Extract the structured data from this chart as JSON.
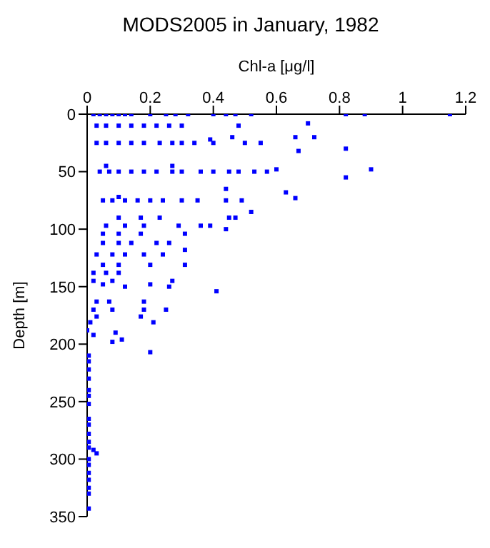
{
  "chart_data": {
    "type": "scatter",
    "title": "MODS2005 in January, 1982",
    "xlabel": "Chl-a [μg/l]",
    "ylabel": "Depth [m]",
    "xlim": [
      0,
      1.2
    ],
    "xticks": [
      0,
      0.2,
      0.4,
      0.6,
      0.8,
      1,
      1.2
    ],
    "ylim": [
      350,
      0
    ],
    "yticks": [
      0,
      50,
      100,
      150,
      200,
      250,
      300,
      350
    ],
    "grid": false,
    "legend": false,
    "marker": "square",
    "series": [
      {
        "color": "#0000ff",
        "x": [
          0.02,
          0.04,
          0.06,
          0.08,
          0.1,
          0.12,
          0.14,
          0.2,
          0.25,
          0.28,
          0.32,
          0.4,
          0.44,
          0.47,
          0.52,
          0.82,
          0.88,
          1.15,
          0.03,
          0.06,
          0.1,
          0.14,
          0.18,
          0.22,
          0.26,
          0.3,
          0.48,
          0.7,
          0.03,
          0.06,
          0.1,
          0.14,
          0.18,
          0.23,
          0.27,
          0.3,
          0.34,
          0.4,
          0.5,
          0.55,
          0.39,
          0.46,
          0.66,
          0.72,
          0.67,
          0.82,
          0.04,
          0.07,
          0.1,
          0.14,
          0.18,
          0.22,
          0.27,
          0.3,
          0.36,
          0.4,
          0.45,
          0.48,
          0.53,
          0.57,
          0.06,
          0.27,
          0.6,
          0.82,
          0.9,
          0.05,
          0.08,
          0.12,
          0.16,
          0.2,
          0.24,
          0.3,
          0.35,
          0.44,
          0.49,
          0.1,
          0.44,
          0.63,
          0.66,
          0.52,
          0.1,
          0.17,
          0.23,
          0.45,
          0.47,
          0.06,
          0.12,
          0.18,
          0.29,
          0.36,
          0.39,
          0.44,
          0.05,
          0.1,
          0.17,
          0.31,
          0.05,
          0.1,
          0.14,
          0.22,
          0.26,
          0.03,
          0.08,
          0.12,
          0.18,
          0.24,
          0.31,
          0.05,
          0.1,
          0.2,
          0.31,
          0.02,
          0.06,
          0.1,
          0.02,
          0.05,
          0.08,
          0.12,
          0.2,
          0.26,
          0.27,
          0.41,
          0.03,
          0.07,
          0.18,
          0.02,
          0.08,
          0.18,
          0.25,
          0.03,
          0.17,
          0.01,
          0.21,
          0.0,
          0.02,
          0.09,
          0.11,
          0.08,
          0.2,
          0.005,
          0.005,
          0.005,
          0.005,
          0.005,
          0.005,
          0.005,
          0.005,
          0.005,
          0.005,
          0.005,
          0.005,
          0.005,
          0.005,
          0.005,
          0.005,
          0.005,
          0.005,
          0.005,
          0.03,
          0.02
        ],
        "values": [
          0,
          0,
          0,
          0,
          0,
          0,
          0,
          0,
          0,
          0,
          0,
          0,
          0,
          0,
          0,
          0,
          0,
          0,
          10,
          10,
          10,
          10,
          10,
          10,
          10,
          10,
          10,
          8,
          25,
          25,
          25,
          25,
          25,
          25,
          25,
          25,
          25,
          25,
          25,
          25,
          22,
          20,
          20,
          20,
          32,
          30,
          50,
          50,
          50,
          50,
          50,
          50,
          50,
          50,
          50,
          50,
          50,
          50,
          50,
          50,
          45,
          45,
          48,
          55,
          48,
          75,
          75,
          75,
          75,
          75,
          75,
          75,
          75,
          75,
          75,
          72,
          65,
          68,
          73,
          85,
          90,
          90,
          90,
          90,
          90,
          97,
          97,
          97,
          97,
          97,
          97,
          100,
          104,
          104,
          104,
          104,
          112,
          112,
          112,
          112,
          112,
          122,
          122,
          122,
          122,
          122,
          118,
          131,
          131,
          131,
          131,
          138,
          138,
          138,
          145,
          148,
          145,
          150,
          148,
          150,
          145,
          154,
          163,
          163,
          163,
          170,
          170,
          170,
          170,
          176,
          176,
          181,
          181,
          188,
          192,
          190,
          196,
          198,
          207,
          210,
          215,
          222,
          230,
          240,
          245,
          252,
          265,
          270,
          278,
          285,
          290,
          300,
          305,
          312,
          318,
          325,
          330,
          343,
          295,
          292
        ]
      }
    ]
  }
}
